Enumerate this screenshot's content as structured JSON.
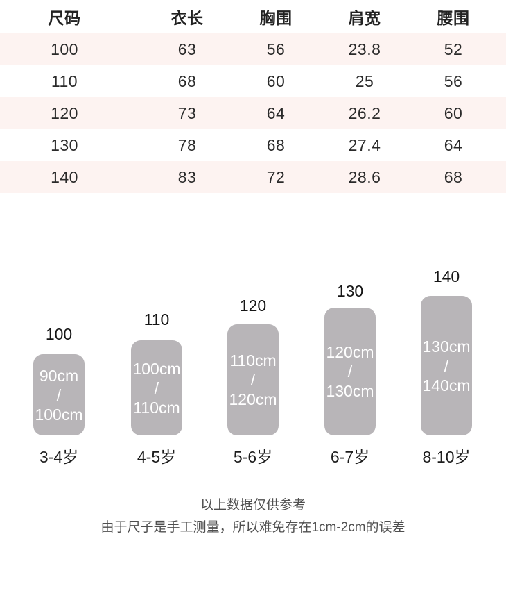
{
  "table": {
    "headers": [
      "尺码",
      "衣长",
      "胸围",
      "肩宽",
      "腰围"
    ],
    "rows": [
      [
        "100",
        "63",
        "56",
        "23.8",
        "52"
      ],
      [
        "110",
        "68",
        "60",
        "25",
        "56"
      ],
      [
        "120",
        "73",
        "64",
        "26.2",
        "60"
      ],
      [
        "130",
        "78",
        "68",
        "27.4",
        "64"
      ],
      [
        "140",
        "83",
        "72",
        "28.6",
        "68"
      ]
    ]
  },
  "chart": {
    "slash": "/",
    "bars": [
      {
        "size": "100",
        "range_top": "90cm",
        "range_bottom": "100cm",
        "age": "3-4岁"
      },
      {
        "size": "110",
        "range_top": "100cm",
        "range_bottom": "110cm",
        "age": "4-5岁"
      },
      {
        "size": "120",
        "range_top": "110cm",
        "range_bottom": "120cm",
        "age": "5-6岁"
      },
      {
        "size": "130",
        "range_top": "120cm",
        "range_bottom": "130cm",
        "age": "6-7岁"
      },
      {
        "size": "140",
        "range_top": "130cm",
        "range_bottom": "140cm",
        "age": "8-10岁"
      }
    ]
  },
  "notes": {
    "line1": "以上数据仅供参考",
    "line2": "由于尺子是手工测量，所以难免存在1cm-2cm的误差"
  },
  "colors": {
    "row_highlight": "#fdf3f1",
    "bar_fill": "#b8b5b8",
    "bar_text": "#ffffff",
    "table_text": "#2a2a2a",
    "note_text": "#4f4f4f"
  },
  "chart_data": [
    {
      "type": "table",
      "title": "童装尺码表",
      "columns": [
        "尺码",
        "衣长",
        "胸围",
        "肩宽",
        "腰围"
      ],
      "rows": [
        [
          100,
          63,
          56,
          23.8,
          52
        ],
        [
          110,
          68,
          60,
          25,
          56
        ],
        [
          120,
          73,
          64,
          26.2,
          60
        ],
        [
          130,
          78,
          68,
          27.4,
          64
        ],
        [
          140,
          83,
          72,
          28.6,
          68
        ]
      ]
    },
    {
      "type": "bar",
      "categories": [
        "100",
        "110",
        "120",
        "130",
        "140"
      ],
      "values": [
        100,
        110,
        120,
        130,
        140
      ],
      "value_ranges_cm": [
        [
          90,
          100
        ],
        [
          100,
          110
        ],
        [
          110,
          120
        ],
        [
          120,
          130
        ],
        [
          130,
          140
        ]
      ],
      "bar_labels": [
        "90cm / 100cm",
        "100cm / 110cm",
        "110cm / 120cm",
        "120cm / 130cm",
        "130cm / 140cm"
      ],
      "age_labels": [
        "3-4岁",
        "4-5岁",
        "5-6岁",
        "6-7岁",
        "8-10岁"
      ],
      "title": "",
      "xlabel": "",
      "ylabel": "",
      "legend": false,
      "grid": false
    }
  ]
}
